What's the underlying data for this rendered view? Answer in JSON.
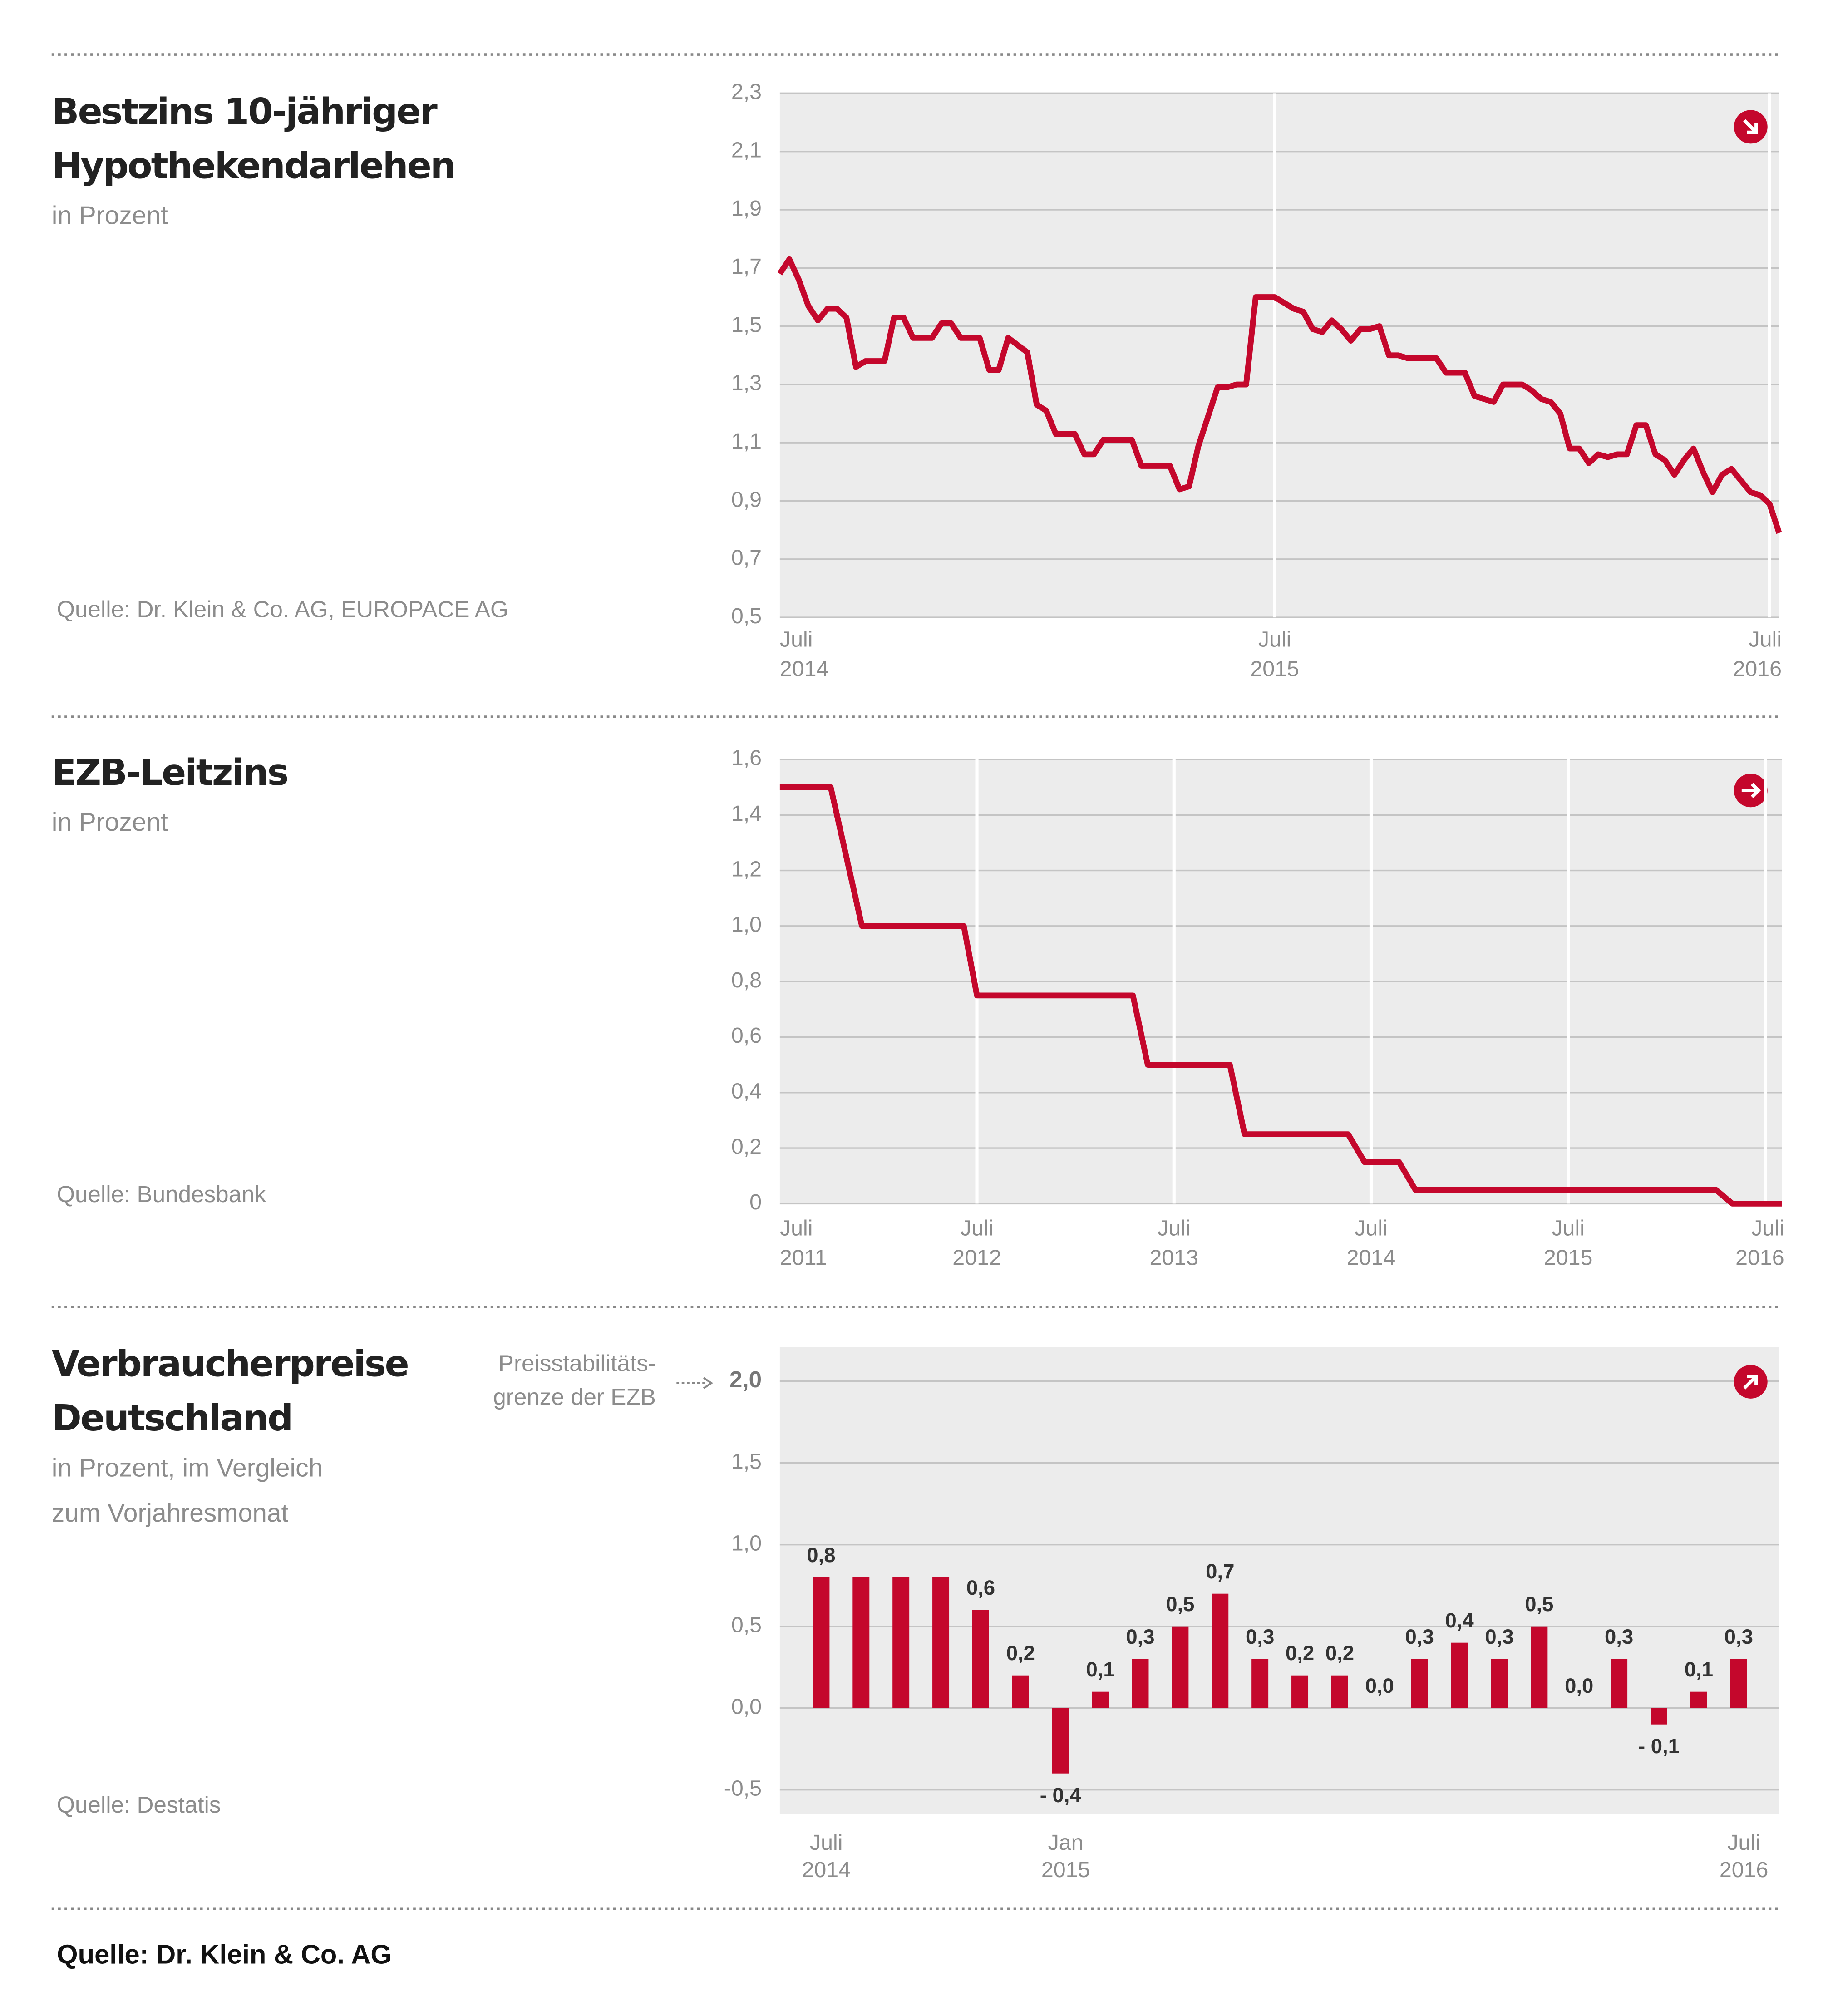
{
  "chart_data": [
    {
      "type": "line",
      "title": [
        "Bestzins 10-jähriger",
        "Hypothekendarlehen"
      ],
      "subtitle": [
        "in Prozent"
      ],
      "source": "Quelle: Dr. Klein & Co. AG, EUROPACE AG",
      "color": "#c4072c",
      "x": [
        0,
        1,
        2,
        3,
        4,
        5,
        6,
        7,
        8,
        9,
        11,
        12,
        13,
        14,
        16,
        17,
        18,
        19,
        21,
        22,
        23,
        24,
        26,
        27,
        28,
        29,
        31,
        32,
        33,
        34,
        37,
        38,
        41,
        42,
        43,
        44,
        46,
        47,
        48,
        49,
        50,
        52,
        54,
        55,
        56,
        57,
        58,
        59,
        60,
        61,
        62,
        63,
        64,
        65,
        66,
        69,
        70,
        72,
        73,
        75,
        76,
        78,
        79,
        80,
        81,
        82,
        83,
        84,
        85,
        86,
        87,
        88,
        89,
        90,
        91,
        92,
        93,
        94,
        95,
        96,
        97,
        98,
        99,
        100,
        101,
        102,
        103,
        104,
        105
      ],
      "values": [
        1.68,
        1.73,
        1.66,
        1.57,
        1.52,
        1.56,
        1.56,
        1.53,
        1.36,
        1.38,
        1.38,
        1.53,
        1.53,
        1.46,
        1.46,
        1.51,
        1.51,
        1.46,
        1.46,
        1.35,
        1.35,
        1.46,
        1.41,
        1.23,
        1.21,
        1.13,
        1.13,
        1.06,
        1.06,
        1.11,
        1.11,
        1.02,
        1.02,
        0.94,
        0.95,
        1.09,
        1.29,
        1.29,
        1.3,
        1.3,
        1.6,
        1.6,
        1.56,
        1.55,
        1.49,
        1.48,
        1.52,
        1.49,
        1.45,
        1.49,
        1.49,
        1.5,
        1.4,
        1.4,
        1.39,
        1.39,
        1.34,
        1.34,
        1.26,
        1.24,
        1.3,
        1.3,
        1.28,
        1.25,
        1.24,
        1.2,
        1.08,
        1.08,
        1.03,
        1.06,
        1.05,
        1.06,
        1.06,
        1.16,
        1.16,
        1.06,
        1.04,
        0.99,
        1.04,
        1.08,
        1.0,
        0.93,
        0.99,
        1.01,
        0.97,
        0.93,
        0.92,
        0.89,
        0.79
      ],
      "xlim": [
        0,
        105
      ],
      "xticks": [
        {
          "value": 0,
          "label": "Juli 2014"
        },
        {
          "value": 52,
          "label": "Juli 2015"
        },
        {
          "value": 104,
          "label": "Juli 2016"
        }
      ],
      "ylim": [
        0.5,
        2.3
      ],
      "yticks": [
        {
          "value": 0.5,
          "label": "0,5"
        },
        {
          "value": 0.7,
          "label": "0,7"
        },
        {
          "value": 0.9,
          "label": "0,9"
        },
        {
          "value": 1.1,
          "label": "1,1"
        },
        {
          "value": 1.3,
          "label": "1,3"
        },
        {
          "value": 1.5,
          "label": "1,5"
        },
        {
          "value": 1.7,
          "label": "1,7"
        },
        {
          "value": 1.9,
          "label": "1,9"
        },
        {
          "value": 2.1,
          "label": "2,1"
        },
        {
          "value": 2.3,
          "label": "2,3"
        }
      ],
      "grid": true
    },
    {
      "type": "line",
      "title": [
        "EZB-Leitzins"
      ],
      "subtitle": [
        "in Prozent"
      ],
      "source": "Quelle: Bundesbank",
      "color": "#c4072c",
      "x": [
        0,
        3.1,
        5,
        11.2,
        12,
        21.5,
        22.4,
        27.4,
        28.3,
        34.6,
        35.6,
        37.7,
        38.7,
        57,
        58,
        61
      ],
      "values": [
        1.5,
        1.5,
        1.0,
        1.0,
        0.75,
        0.75,
        0.5,
        0.5,
        0.25,
        0.25,
        0.15,
        0.15,
        0.05,
        0.05,
        0,
        0
      ],
      "xlim": [
        0,
        61
      ],
      "xticks": [
        {
          "value": 0,
          "label": "Juli 2011"
        },
        {
          "value": 12,
          "label": "Juli 2012"
        },
        {
          "value": 24,
          "label": "Juli 2013"
        },
        {
          "value": 36,
          "label": "Juli 2014"
        },
        {
          "value": 48,
          "label": "Juli 2015"
        },
        {
          "value": 60,
          "label": "Juli 2016"
        }
      ],
      "ylim": [
        0,
        1.6
      ],
      "yticks": [
        0,
        {
          "value": 0.2,
          "label": "0,2"
        },
        {
          "value": 0.4,
          "label": "0,4"
        },
        {
          "value": 0.6,
          "label": "0,6"
        },
        {
          "value": 0.8,
          "label": "0,8"
        },
        {
          "value": 1.0,
          "label": "1,0"
        },
        {
          "value": 1.2,
          "label": "1,2"
        },
        {
          "value": 1.4,
          "label": "1,4"
        },
        {
          "value": 1.6,
          "label": "1,6"
        }
      ],
      "grid": true
    },
    {
      "type": "bar",
      "title": [
        "Verbraucherpreise",
        "Deutschland"
      ],
      "subtitle": [
        "in Prozent, im Vergleich",
        "zum Vorjahresmonat"
      ],
      "source": "Quelle: Destatis",
      "color": "#c4072c",
      "annotation": [
        "Preisstabilitäts-",
        "grenze der EZB"
      ],
      "categories": [
        "Juli 2014",
        null,
        null,
        null,
        null,
        null,
        "Jan 2015",
        null,
        null,
        null,
        null,
        null,
        null,
        null,
        null,
        null,
        null,
        null,
        null,
        null,
        null,
        null,
        null,
        "Juli 2016"
      ],
      "values": [
        0.8,
        0.8,
        0.8,
        0.8,
        0.6,
        0.2,
        -0.4,
        0.1,
        0.3,
        0.5,
        0.7,
        0.3,
        0.2,
        0.2,
        0.0,
        0.3,
        0.4,
        0.3,
        0.5,
        0.0,
        0.3,
        -0.1,
        0.1,
        0.3
      ],
      "value_labels": [
        "0,8",
        null,
        null,
        null,
        "0,6",
        "0,2",
        "- 0,4",
        "0,1",
        "0,3",
        "0,5",
        "0,7",
        "0,3",
        "0,2",
        "0,2",
        "0,0",
        "0,3",
        "0,4",
        "0,3",
        "0,5",
        "0,0",
        "0,3",
        "- 0,1",
        "0,1",
        "0,3"
      ],
      "ylim": [
        -0.65,
        2.21
      ],
      "yticks": [
        {
          "value": -0.5,
          "label": "-0,5"
        },
        {
          "value": 0,
          "label": "0,0"
        },
        {
          "value": 0.5,
          "label": "0,5"
        },
        {
          "value": 1.0,
          "label": "1,0"
        },
        {
          "value": 1.5,
          "label": "1,5"
        },
        {
          "value": 2.0,
          "label": "2,0"
        }
      ],
      "grid": true
    }
  ],
  "source": "Quelle: Dr. Klein & Co. AG"
}
